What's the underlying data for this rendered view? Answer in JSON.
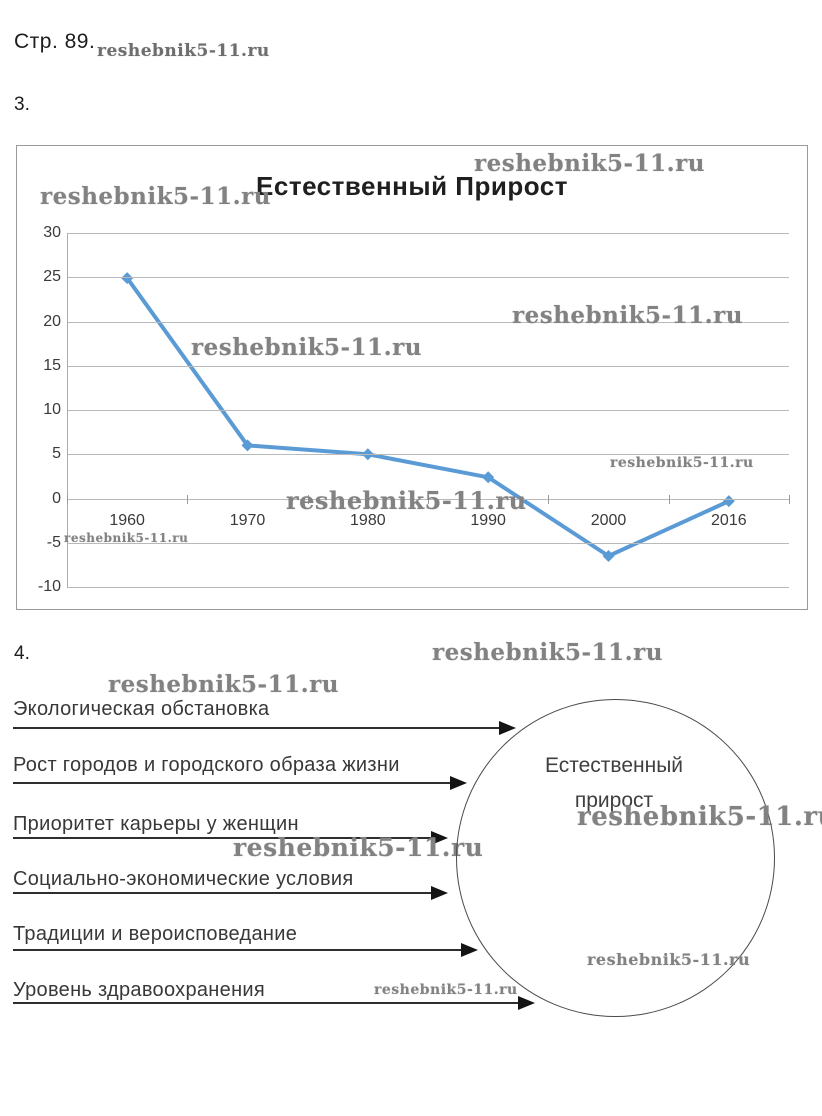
{
  "page": {
    "header": "Стр. 89.",
    "item3": "3.",
    "item4": "4."
  },
  "watermark": "reshebnik5-11.ru",
  "chart_data": {
    "type": "line",
    "title": "Естественный Прирост",
    "categories": [
      "1960",
      "1970",
      "1980",
      "1990",
      "2000",
      "2016"
    ],
    "series": [
      {
        "name": "Естественный прирост",
        "values": [
          24.9,
          6,
          5,
          2.4,
          -6.5,
          -0.3
        ]
      }
    ],
    "xlabel": "",
    "ylabel": "",
    "ylim": [
      -10,
      30
    ],
    "yticks": [
      30,
      25,
      20,
      15,
      10,
      5,
      0,
      -5,
      -10
    ],
    "grid": true,
    "legend": false,
    "line_color": "#5b9bd5",
    "grid_color": "#b9b9b9",
    "marker": "diamond"
  },
  "diagram": {
    "circle_label_line1": "Естественный",
    "circle_label_line2": "прирост",
    "factors": [
      "Экологическая обстановка",
      "Рост городов и городского образа жизни",
      "Приоритет карьеры у женщин",
      "Социально-экономические условия",
      "Традиции и вероисповедание",
      "Уровень здравоохранения"
    ]
  }
}
